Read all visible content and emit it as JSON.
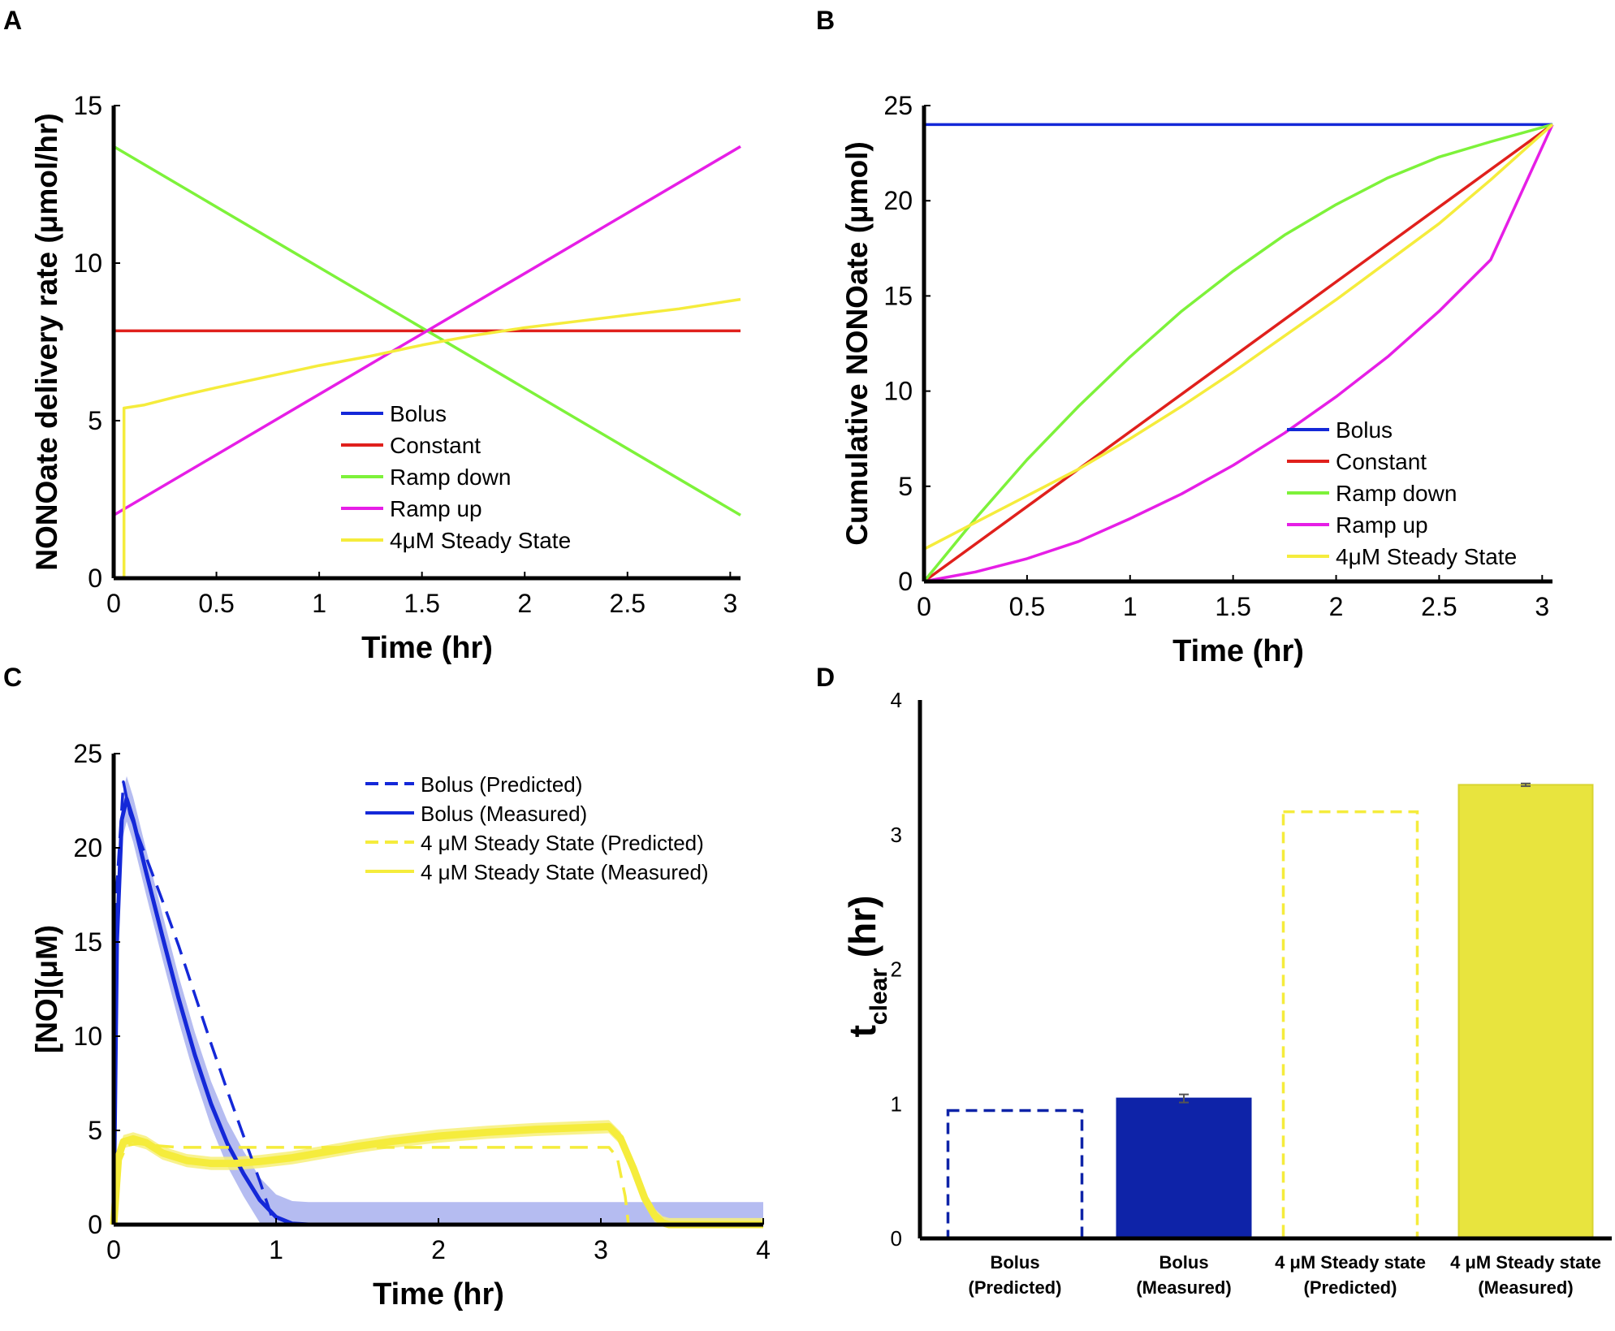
{
  "panels": [
    {
      "letter": "A"
    },
    {
      "letter": "B"
    },
    {
      "letter": "C"
    },
    {
      "letter": "D"
    }
  ],
  "colors": {
    "bolus": "#1428d8",
    "constant": "#e0201c",
    "ramp_down": "#7df23a",
    "ramp_up": "#e61ee6",
    "steady": "#f5ec3c",
    "bolus_band": "#a8b0ee",
    "steady_band": "#f7f07a",
    "bar_blue": "#0e23a8",
    "bar_yellow": "#e8e43e",
    "error": "#555555"
  },
  "chart_data": [
    {
      "id": "A",
      "type": "line",
      "title": "",
      "xlabel": "Time (hr)",
      "ylabel": "NONOate delivery rate (μmol/hr)",
      "xlim": [
        0,
        3.05
      ],
      "ylim": [
        0,
        15
      ],
      "xticks": [
        0,
        0.5,
        1,
        1.5,
        2,
        2.5,
        3
      ],
      "xtick_labels": [
        "0",
        "0.5",
        "1",
        "1.5",
        "2",
        "2.5",
        "3"
      ],
      "yticks": [
        0,
        5,
        10,
        15
      ],
      "ytick_labels": [
        "0",
        "5",
        "10",
        "15"
      ],
      "legend_position": "lower-right",
      "series": [
        {
          "name": "Bolus",
          "color_key": "bolus",
          "x": [
            0,
            3.05
          ],
          "y": [
            0,
            0
          ]
        },
        {
          "name": "Constant",
          "color_key": "constant",
          "x": [
            0,
            3.05
          ],
          "y": [
            7.85,
            7.85
          ]
        },
        {
          "name": "Ramp down",
          "color_key": "ramp_down",
          "x": [
            0,
            3.05
          ],
          "y": [
            13.7,
            2.0
          ]
        },
        {
          "name": "Ramp up",
          "color_key": "ramp_up",
          "x": [
            0,
            3.05
          ],
          "y": [
            2.0,
            13.7
          ]
        },
        {
          "name": "4μM Steady State",
          "color_key": "steady",
          "x": [
            0,
            0.05,
            0.05,
            0.15,
            0.3,
            0.5,
            0.75,
            1.0,
            1.25,
            1.5,
            1.75,
            2.0,
            2.25,
            2.5,
            2.75,
            3.05
          ],
          "y": [
            0,
            0,
            5.4,
            5.5,
            5.75,
            6.05,
            6.4,
            6.75,
            7.05,
            7.4,
            7.7,
            7.95,
            8.15,
            8.35,
            8.55,
            8.85
          ]
        }
      ]
    },
    {
      "id": "B",
      "type": "line",
      "title": "",
      "xlabel": "Time (hr)",
      "ylabel": "Cumulative NONOate (μmol)",
      "xlim": [
        0,
        3.05
      ],
      "ylim": [
        0,
        25
      ],
      "xticks": [
        0,
        0.5,
        1,
        1.5,
        2,
        2.5,
        3
      ],
      "xtick_labels": [
        "0",
        "0.5",
        "1",
        "1.5",
        "2",
        "2.5",
        "3"
      ],
      "yticks": [
        0,
        5,
        10,
        15,
        20,
        25
      ],
      "ytick_labels": [
        "0",
        "5",
        "10",
        "15",
        "20",
        "25"
      ],
      "legend_position": "lower-right",
      "series": [
        {
          "name": "Bolus",
          "color_key": "bolus",
          "x": [
            0,
            3.05
          ],
          "y": [
            24,
            24
          ]
        },
        {
          "name": "Constant",
          "color_key": "constant",
          "x": [
            0,
            3.05
          ],
          "y": [
            0,
            24
          ]
        },
        {
          "name": "Ramp down",
          "color_key": "ramp_down",
          "x": [
            0,
            0.25,
            0.5,
            0.75,
            1.0,
            1.25,
            1.5,
            1.75,
            2.0,
            2.25,
            2.5,
            2.75,
            3.05
          ],
          "y": [
            0,
            3.3,
            6.4,
            9.2,
            11.8,
            14.2,
            16.3,
            18.2,
            19.8,
            21.2,
            22.3,
            23.1,
            24.0
          ]
        },
        {
          "name": "Ramp up",
          "color_key": "ramp_up",
          "x": [
            0,
            0.25,
            0.5,
            0.75,
            1.0,
            1.25,
            1.5,
            1.75,
            2.0,
            2.25,
            2.5,
            2.75,
            3.05
          ],
          "y": [
            0,
            0.5,
            1.2,
            2.1,
            3.3,
            4.6,
            6.1,
            7.8,
            9.7,
            11.8,
            14.2,
            16.9,
            24.0
          ]
        },
        {
          "name": "4μM Steady State",
          "color_key": "steady",
          "x": [
            0,
            0.25,
            0.5,
            0.75,
            1.0,
            1.25,
            1.5,
            1.75,
            2.0,
            2.25,
            2.5,
            2.75,
            3.05
          ],
          "y": [
            1.7,
            3.1,
            4.5,
            5.9,
            7.5,
            9.2,
            11.0,
            12.9,
            14.8,
            16.8,
            18.8,
            21.1,
            24.0
          ]
        }
      ]
    },
    {
      "id": "C",
      "type": "line",
      "title": "",
      "xlabel": "Time (hr)",
      "ylabel": "[NO](μM)",
      "xlim": [
        0,
        4
      ],
      "ylim": [
        0,
        25
      ],
      "xticks": [
        0,
        1,
        2,
        3,
        4
      ],
      "xtick_labels": [
        "0",
        "1",
        "2",
        "3",
        "4"
      ],
      "yticks": [
        0,
        5,
        10,
        15,
        20,
        25
      ],
      "ytick_labels": [
        "0",
        "5",
        "10",
        "15",
        "20",
        "25"
      ],
      "legend_position": "top-right",
      "series": [
        {
          "name": "Bolus (Predicted)",
          "color_key": "bolus",
          "style": "dashed",
          "x": [
            0,
            0.02,
            0.06,
            0.1,
            0.2,
            0.3,
            0.4,
            0.5,
            0.6,
            0.7,
            0.8,
            0.9,
            0.97,
            0.97
          ],
          "y": [
            0,
            18,
            23.5,
            21.8,
            19.5,
            17.2,
            14.8,
            12.2,
            9.6,
            7.1,
            4.7,
            2.3,
            0.5,
            0
          ]
        },
        {
          "name": "Bolus (Measured)",
          "color_key": "bolus",
          "style": "solid",
          "band_key": "bolus_band",
          "band": 1.2,
          "x": [
            0,
            0.02,
            0.05,
            0.08,
            0.12,
            0.2,
            0.3,
            0.4,
            0.5,
            0.6,
            0.7,
            0.8,
            0.9,
            1.0,
            1.1,
            1.2,
            4.0
          ],
          "y": [
            0,
            15,
            21.5,
            22.6,
            21.5,
            18.7,
            15.3,
            12.0,
            9.0,
            6.4,
            4.3,
            2.7,
            1.3,
            0.4,
            0.05,
            0,
            0
          ]
        },
        {
          "name": "4 μM Steady State (Predicted)",
          "color_key": "steady",
          "style": "dashed",
          "x": [
            0,
            0.03,
            0.08,
            0.15,
            0.25,
            0.4,
            0.8,
            1.5,
            2.5,
            3.05,
            3.1,
            3.15,
            3.17,
            3.5
          ],
          "y": [
            0,
            3.2,
            4.2,
            4.3,
            4.2,
            4.1,
            4.1,
            4.1,
            4.1,
            4.1,
            3.6,
            1.5,
            0,
            0
          ]
        },
        {
          "name": "4 μM Steady State (Measured)",
          "color_key": "steady",
          "style": "solid",
          "band_key": "steady_band",
          "band": 0.35,
          "x": [
            0,
            0.03,
            0.06,
            0.12,
            0.2,
            0.3,
            0.45,
            0.6,
            0.75,
            0.9,
            1.1,
            1.3,
            1.5,
            1.7,
            2.0,
            2.3,
            2.6,
            2.9,
            3.05,
            3.12,
            3.2,
            3.27,
            3.33,
            3.38,
            3.42,
            3.5,
            4.0
          ],
          "y": [
            0,
            3.6,
            4.4,
            4.55,
            4.35,
            3.8,
            3.4,
            3.25,
            3.25,
            3.35,
            3.55,
            3.85,
            4.15,
            4.4,
            4.7,
            4.9,
            5.05,
            5.15,
            5.2,
            4.6,
            3.0,
            1.4,
            0.5,
            0.1,
            0,
            0,
            0
          ]
        }
      ]
    },
    {
      "id": "D",
      "type": "bar",
      "title": "",
      "xlabel": "",
      "ylabel": "t",
      "ylabel_sub": "clear",
      "ylabel_tail": " (hr)",
      "ylim": [
        0,
        4
      ],
      "yticks": [
        0,
        1,
        2,
        3,
        4
      ],
      "ytick_labels": [
        "0",
        "1",
        "2",
        "3",
        "4"
      ],
      "categories": [
        {
          "line1": "Bolus",
          "line2": "(Predicted)"
        },
        {
          "line1": "Bolus",
          "line2": "(Measured)"
        },
        {
          "line1": "4 μM Steady state",
          "line2": "(Predicted)"
        },
        {
          "line1": "4 μM Steady state",
          "line2": "(Measured)"
        }
      ],
      "values": [
        0.95,
        1.04,
        3.17,
        3.37
      ],
      "errors": [
        0,
        0.03,
        0,
        0.01
      ],
      "styles": [
        "dashed-outline-blue",
        "solid-blue",
        "dashed-outline-yellow",
        "solid-yellow"
      ]
    }
  ]
}
